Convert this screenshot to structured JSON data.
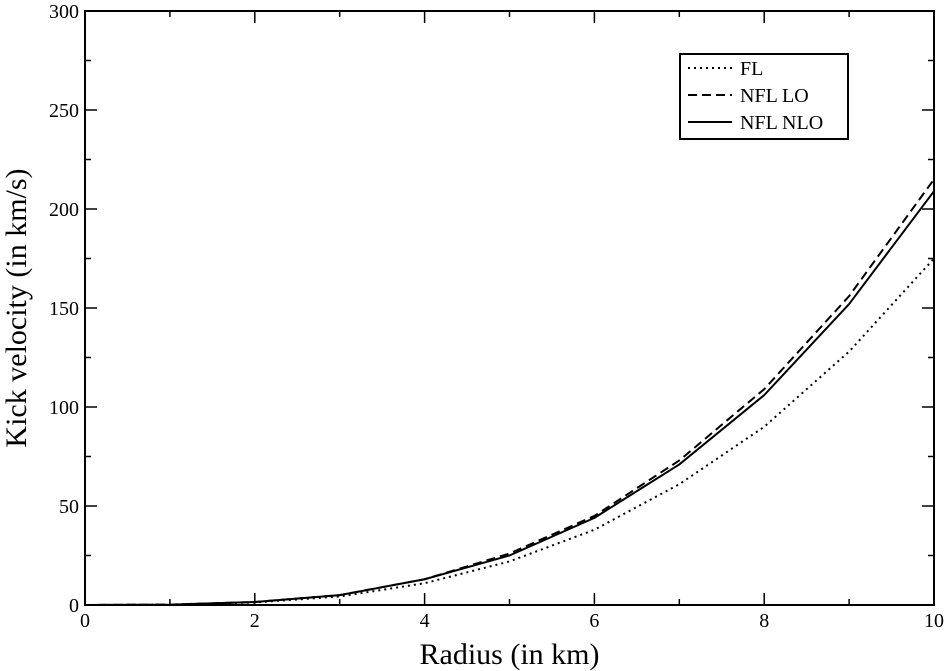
{
  "chart_data": {
    "type": "line",
    "title": "",
    "xlabel": "Radius (in km)",
    "ylabel": "Kick velocity (in km/s)",
    "xlim": [
      0,
      10
    ],
    "ylim": [
      0,
      300
    ],
    "xticks": [
      0,
      2,
      4,
      6,
      8,
      10
    ],
    "yticks": [
      0,
      50,
      100,
      150,
      200,
      250,
      300
    ],
    "grid": false,
    "legend_position": "top-right",
    "series": [
      {
        "name": "FL",
        "style": "dotted",
        "color": "#000000",
        "x": [
          0,
          1,
          2,
          3,
          4,
          5,
          6,
          7,
          8,
          9,
          10
        ],
        "y": [
          0,
          0.2,
          1.3,
          4.3,
          11,
          22,
          38,
          61,
          90,
          128,
          175
        ]
      },
      {
        "name": "NFL LO",
        "style": "dashed",
        "color": "#000000",
        "x": [
          0,
          1,
          2,
          3,
          4,
          5,
          6,
          7,
          8,
          9,
          10
        ],
        "y": [
          0,
          0.2,
          1.5,
          5,
          13,
          26,
          45,
          73,
          109,
          156,
          215
        ]
      },
      {
        "name": "NFL NLO",
        "style": "solid",
        "color": "#000000",
        "x": [
          0,
          1,
          2,
          3,
          4,
          5,
          6,
          7,
          8,
          9,
          10
        ],
        "y": [
          0,
          0.2,
          1.5,
          5,
          13,
          25,
          44,
          71,
          106,
          152,
          209
        ]
      }
    ]
  }
}
